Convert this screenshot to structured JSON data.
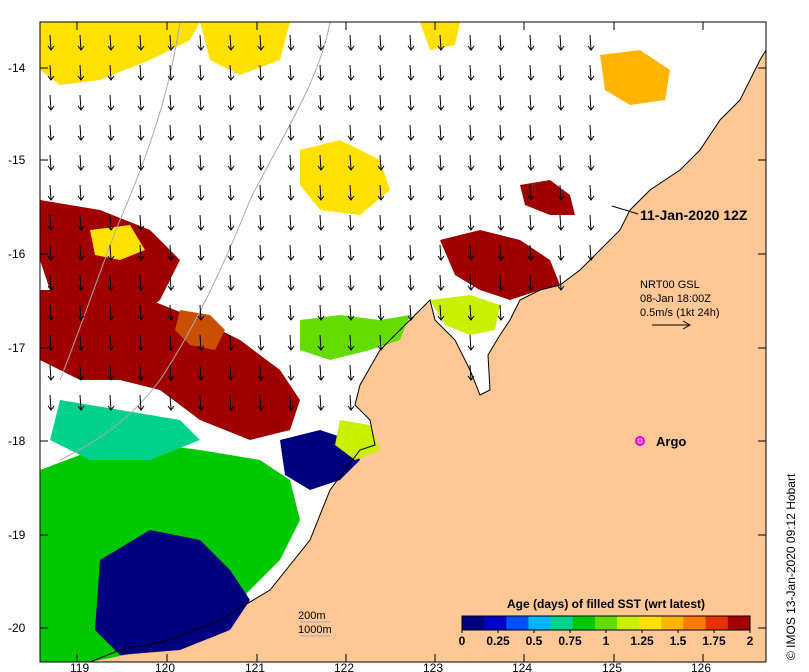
{
  "map": {
    "x_ticks": [
      "119",
      "120",
      "121",
      "122",
      "123",
      "124",
      "125",
      "126"
    ],
    "y_ticks": [
      "-14",
      "-15",
      "-16",
      "-17",
      "-18",
      "-19",
      "-20"
    ],
    "timestamp_label": "11-Jan-2020 12Z",
    "current_legend": {
      "line1": "NRT00 GSL",
      "line2": "08-Jan 18:00Z",
      "line3": "0.5m/s (1kt 24h)"
    },
    "argo_label": "Argo",
    "bathy_labels": [
      "200m",
      "1000m"
    ],
    "colorbar": {
      "title": "Age (days) of filled SST (wrt latest)",
      "ticks": [
        "0",
        "0.25",
        "0.5",
        "0.75",
        "1",
        "1.25",
        "1.5",
        "1.75",
        "2"
      ],
      "colors": [
        "#00007f",
        "#0000c8",
        "#0050ff",
        "#00b4ff",
        "#00d28c",
        "#00c800",
        "#64dc00",
        "#c8f000",
        "#ffe100",
        "#ffb400",
        "#ff7800",
        "#e63200",
        "#a00000"
      ]
    },
    "credit": "© IMOS 13-Jan-2020 09:12 Hobart",
    "colors": {
      "land": "#fdc896",
      "coast": "#000000",
      "arrows": "#000000",
      "argo_marker": "#e600e6"
    }
  }
}
